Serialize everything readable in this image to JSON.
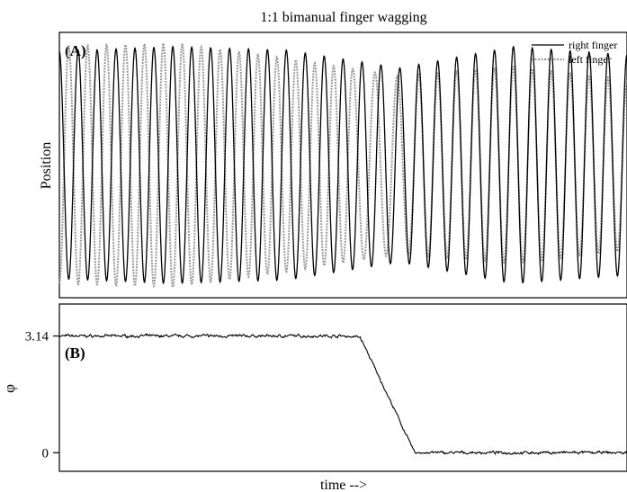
{
  "title": "1:1 bimanual finger wagging",
  "xlabel": "time -->",
  "chart_data": [
    {
      "type": "line",
      "panel_label": "(A)",
      "title": "1:1 bimanual finger wagging",
      "xlabel": "",
      "ylabel": "Position",
      "x_ticks": "none",
      "y_ticks": "none",
      "grid": false,
      "legend": {
        "placement": "top-right",
        "entries": [
          "right finger",
          "left finger"
        ]
      },
      "xlim": [
        0,
        1
      ],
      "ylim": [
        -1.12,
        1.12
      ],
      "transition": {
        "start": 0.515,
        "end": 0.625
      },
      "series": [
        {
          "name": "right finger",
          "color": "#000000",
          "style": "solid",
          "cycles": 30,
          "phase": 1.6,
          "amplitude_keyframes": [
            [
              0,
              0.96
            ],
            [
              0.2,
              1.0
            ],
            [
              0.4,
              0.97
            ],
            [
              0.6,
              0.82
            ],
            [
              0.8,
              1.0
            ],
            [
              1,
              0.93
            ]
          ]
        },
        {
          "name": "left finger",
          "color": "#9a9a9a",
          "style": "dotted",
          "cycles": 30,
          "phase": 4.74,
          "phase_after_transition": 1.6,
          "amplitude_keyframes": [
            [
              0,
              1.0
            ],
            [
              0.2,
              1.03
            ],
            [
              0.4,
              0.9
            ],
            [
              0.6,
              0.75
            ],
            [
              0.8,
              0.83
            ],
            [
              1,
              0.72
            ]
          ]
        }
      ]
    },
    {
      "type": "line",
      "panel_label": "(B)",
      "xlabel": "time -->",
      "ylabel": "φ",
      "yticks": [
        0,
        3.14
      ],
      "ylim": [
        -0.5,
        4.0
      ],
      "xlim": [
        0,
        1
      ],
      "grid": false,
      "series": [
        {
          "name": "",
          "color": "#000000",
          "points": [
            [
              0,
              3.14
            ],
            [
              0.5,
              3.14
            ],
            [
              0.53,
              3.11
            ],
            [
              0.626,
              0
            ],
            [
              1,
              0
            ]
          ]
        }
      ]
    }
  ]
}
